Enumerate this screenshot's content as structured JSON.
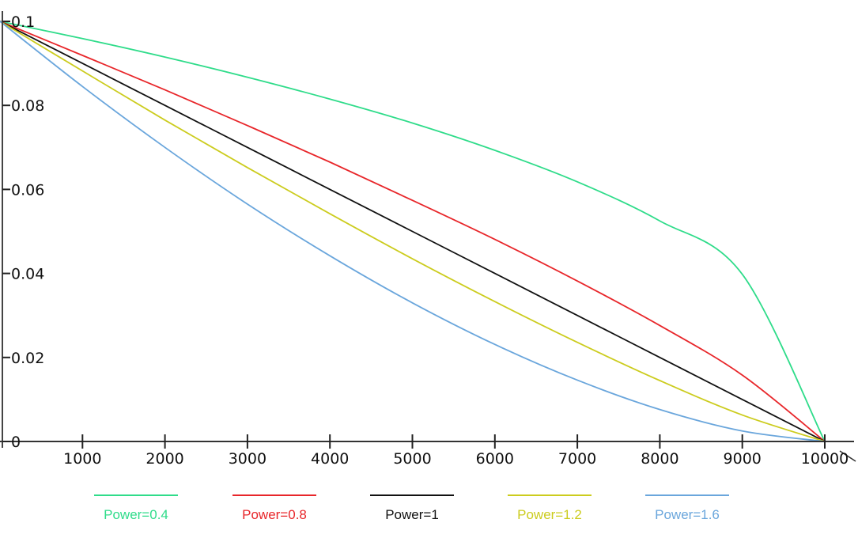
{
  "chart_data": {
    "type": "line",
    "title": "",
    "xlabel": "",
    "ylabel": "",
    "xlim": [
      0,
      10400
    ],
    "ylim": [
      0,
      0.1
    ],
    "grid": false,
    "legend_position": "bottom",
    "x_ticks": [
      {
        "value": 1000,
        "label": "1000"
      },
      {
        "value": 2000,
        "label": "2000"
      },
      {
        "value": 3000,
        "label": "3000"
      },
      {
        "value": 4000,
        "label": "4000"
      },
      {
        "value": 5000,
        "label": "5000"
      },
      {
        "value": 6000,
        "label": "6000"
      },
      {
        "value": 7000,
        "label": "7000"
      },
      {
        "value": 8000,
        "label": "8000"
      },
      {
        "value": 9000,
        "label": "9000"
      },
      {
        "value": 10000,
        "label": "10000"
      }
    ],
    "y_ticks": [
      {
        "value": 0,
        "label": "0"
      },
      {
        "value": 0.02,
        "label": "0.02"
      },
      {
        "value": 0.04,
        "label": "0.04"
      },
      {
        "value": 0.06,
        "label": "0.06"
      },
      {
        "value": 0.08,
        "label": "0.08"
      },
      {
        "value": 0.1,
        "label": "0.1"
      }
    ],
    "x": [
      0,
      1000,
      2000,
      3000,
      4000,
      5000,
      6000,
      7000,
      8000,
      9000,
      10000
    ],
    "series": [
      {
        "name": "Power=0.4",
        "color": "#2fdc8a",
        "values": [
          0.1,
          0.0959,
          0.0915,
          0.0867,
          0.0815,
          0.0758,
          0.0693,
          0.0618,
          0.0525,
          0.0398,
          0.0
        ]
      },
      {
        "name": "Power=0.8",
        "color": "#e8262a",
        "values": [
          0.1,
          0.0919,
          0.0837,
          0.0752,
          0.0665,
          0.0574,
          0.0481,
          0.0382,
          0.0276,
          0.0158,
          0.0
        ]
      },
      {
        "name": "Power=1",
        "color": "#111111",
        "values": [
          0.1,
          0.09,
          0.08,
          0.07,
          0.06,
          0.05,
          0.04,
          0.03,
          0.02,
          0.01,
          0.0
        ]
      },
      {
        "name": "Power=1.2",
        "color": "#cccc1e",
        "values": [
          0.1,
          0.0882,
          0.0765,
          0.0652,
          0.0542,
          0.0435,
          0.0333,
          0.0236,
          0.0145,
          0.0063,
          0.0
        ]
      },
      {
        "name": "Power=1.6",
        "color": "#6aa6dc",
        "values": [
          0.1,
          0.0845,
          0.07,
          0.0565,
          0.0442,
          0.033,
          0.0231,
          0.0146,
          0.0076,
          0.0025,
          0.0
        ]
      }
    ]
  }
}
